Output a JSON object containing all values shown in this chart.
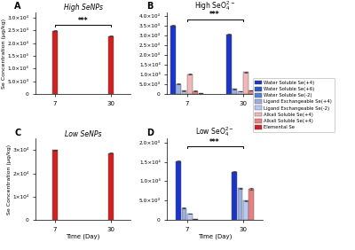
{
  "panels": {
    "A": {
      "title": "High SeNPs",
      "label": "A",
      "ylim": [
        0,
        32000.0
      ],
      "yticks": [
        0,
        5000,
        10000,
        15000,
        20000,
        25000,
        30000
      ],
      "ytick_labels": [
        "0",
        "5.0×10³",
        "1.0×10⁴",
        "1.5×10⁴",
        "2.0×10⁴",
        "2.5×10⁴",
        "3.0×10⁴"
      ],
      "bars_day7": [
        {
          "category": "elemental_se",
          "value": 24800.0,
          "color": "#d12020",
          "err": 180
        }
      ],
      "bars_day30": [
        {
          "category": "elemental_se",
          "value": 22700.0,
          "color": "#d12020",
          "err": 150
        }
      ],
      "sig_bracket": {
        "y": 27000.0,
        "label": "***"
      },
      "show_sig": true
    },
    "B": {
      "title": "High SeO₄²⁻",
      "label": "B",
      "ylim": [
        0,
        42000.0
      ],
      "yticks": [
        0,
        5000,
        10000,
        15000,
        20000,
        25000,
        30000,
        35000,
        40000
      ],
      "ytick_labels": [
        "0",
        "5.0×10³",
        "1.0×10⁴",
        "1.5×10⁴",
        "2.0×10⁴",
        "2.5×10⁴",
        "3.0×10⁴",
        "3.5×10⁴",
        "4.0×10⁴"
      ],
      "bars_day7": [
        {
          "category": "water_soluble_4",
          "value": 35200.0,
          "color": "#1a35c8",
          "err": 280
        },
        {
          "category": "ligand_ex_4",
          "value": 5200,
          "color": "#9baee0",
          "err": 80
        },
        {
          "category": "ligand_ex_m2",
          "value": 1600,
          "color": "#b8c8f0",
          "err": 60
        },
        {
          "category": "alkali_4a",
          "value": 10200.0,
          "color": "#f0b8b8",
          "err": 180
        },
        {
          "category": "alkali_4b",
          "value": 1500,
          "color": "#e88080",
          "err": 80
        },
        {
          "category": "elemental_se",
          "value": 500,
          "color": "#d12020",
          "err": 40
        }
      ],
      "bars_day30": [
        {
          "category": "water_soluble_4",
          "value": 30800.0,
          "color": "#1a35c8",
          "err": 280
        },
        {
          "category": "ligand_ex_4",
          "value": 2500,
          "color": "#9baee0",
          "err": 80
        },
        {
          "category": "ligand_ex_m2",
          "value": 1400,
          "color": "#b8c8f0",
          "err": 60
        },
        {
          "category": "alkali_4a",
          "value": 11200.0,
          "color": "#f0b8b8",
          "err": 180
        },
        {
          "category": "alkali_4b",
          "value": 1800,
          "color": "#e88080",
          "err": 80
        },
        {
          "category": "elemental_se",
          "value": 1500,
          "color": "#d12020",
          "err": 60
        }
      ],
      "sig_bracket": {
        "y": 38500.0,
        "label": "***"
      },
      "show_sig": true
    },
    "C": {
      "title": "Low SeNPs",
      "label": "C",
      "ylim": [
        0,
        35000.0
      ],
      "yticks": [
        0,
        10000,
        20000,
        30000
      ],
      "ytick_labels": [
        "0",
        "1×10⁴",
        "2×10⁴",
        "3×10⁴"
      ],
      "bars_day7": [
        {
          "category": "elemental_se",
          "value": 30000.0,
          "color": "#d12020",
          "err": 180
        }
      ],
      "bars_day30": [
        {
          "category": "elemental_se",
          "value": 28800.0,
          "color": "#d12020",
          "err": 150
        }
      ],
      "sig_bracket": null,
      "show_sig": false
    },
    "D": {
      "title": "Low SeO₄²⁻",
      "label": "D",
      "ylim": [
        0,
        21000.0
      ],
      "yticks": [
        0,
        5000,
        10000,
        15000,
        20000
      ],
      "ytick_labels": [
        "0",
        "5.0×10³",
        "1.0×10⁴",
        "1.5×10⁴",
        "2.0×10⁴"
      ],
      "bars_day7": [
        {
          "category": "water_soluble_4",
          "value": 15200.0,
          "color": "#1a35c8",
          "err": 200
        },
        {
          "category": "ligand_ex_4",
          "value": 3100,
          "color": "#9baee0",
          "err": 80
        },
        {
          "category": "ligand_ex_m2",
          "value": 1600,
          "color": "#b8c8f0",
          "err": 60
        },
        {
          "category": "elemental_se",
          "value": 280,
          "color": "#d12020",
          "err": 30
        }
      ],
      "bars_day30": [
        {
          "category": "water_soluble_4",
          "value": 12500.0,
          "color": "#1a35c8",
          "err": 200
        },
        {
          "category": "ligand_ex_4",
          "value": 8200,
          "color": "#9baee0",
          "err": 120
        },
        {
          "category": "ligand_ex_m2",
          "value": 5000,
          "color": "#b8c8f0",
          "err": 100
        },
        {
          "category": "alkali_4b",
          "value": 8000,
          "color": "#e88080",
          "err": 180
        }
      ],
      "sig_bracket": {
        "y": 19000.0,
        "label": "***"
      },
      "show_sig": true
    }
  },
  "legend_entries": [
    {
      "label": "Water Soluble Se(+4)",
      "color": "#1a35c8"
    },
    {
      "label": "Water Soluble Se(+6)",
      "color": "#2b58c8"
    },
    {
      "label": "Water Soluble Se(-2)",
      "color": "#5580d4"
    },
    {
      "label": "Ligand Exchangeable Se(+4)",
      "color": "#9baee0"
    },
    {
      "label": "Ligand Exchangeable Se(-2)",
      "color": "#b8c8f0"
    },
    {
      "label": "Alkali Soluble Se(+4)",
      "color": "#f0b8b8"
    },
    {
      "label": "Alkali Soluble Se(+4)",
      "color": "#e88080"
    },
    {
      "label": "Elemental Se",
      "color": "#d12020"
    }
  ],
  "ylabel": "Se Concentration (μg/kg)",
  "xlabel": "Time (Day)",
  "background_color": "#ffffff"
}
